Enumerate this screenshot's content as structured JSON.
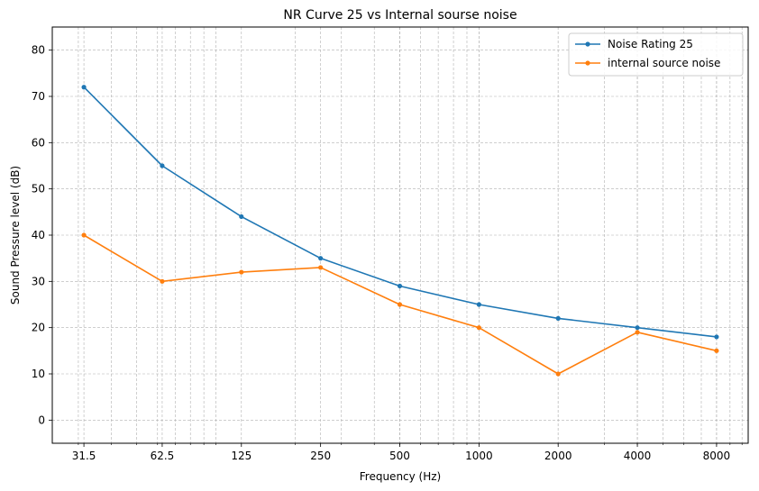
{
  "chart_data": {
    "type": "line",
    "title": "NR Curve 25 vs Internal sourse noise",
    "xlabel": "Frequency (Hz)",
    "ylabel": "Sound Pressure level (dB)",
    "x_scale": "log2",
    "x": [
      31.5,
      62.5,
      125,
      250,
      500,
      1000,
      2000,
      4000,
      8000
    ],
    "x_tick_labels": [
      "31.5",
      "62.5",
      "125",
      "250",
      "500",
      "1000",
      "2000",
      "4000",
      "8000"
    ],
    "ylim": [
      -5,
      85
    ],
    "y_ticks": [
      0,
      10,
      20,
      30,
      40,
      50,
      60,
      70,
      80
    ],
    "grid": true,
    "legend_position": "top-right",
    "series": [
      {
        "name": "Noise Rating 25",
        "color": "#1f77b4",
        "values": [
          72,
          55,
          44,
          35,
          29,
          25,
          22,
          20,
          18
        ]
      },
      {
        "name": "internal source noise",
        "color": "#ff7f0e",
        "values": [
          40,
          30,
          32,
          33,
          25,
          20,
          10,
          19,
          15
        ]
      }
    ]
  }
}
